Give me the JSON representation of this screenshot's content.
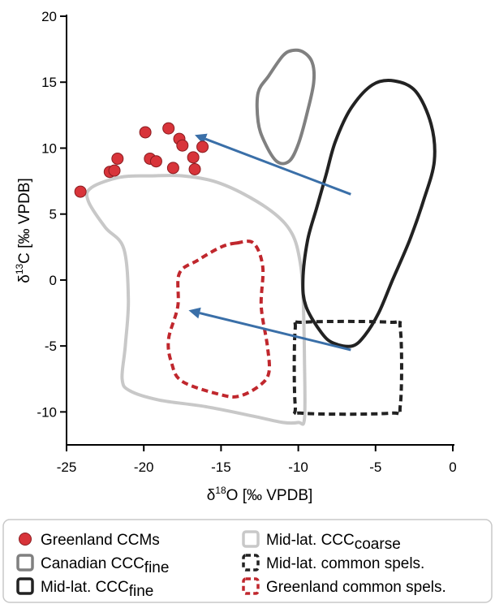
{
  "chart_data": {
    "type": "scatter",
    "title": "",
    "xlabel": {
      "prefix": "δ",
      "sup": "18",
      "suffix": "O [‰ VPDB]"
    },
    "ylabel": {
      "prefix": "δ",
      "sup": "13",
      "suffix": "C [‰ VPDB]"
    },
    "xlim": [
      -25,
      0
    ],
    "ylim": [
      -12.5,
      20
    ],
    "x_ticks": [
      -25,
      -20,
      -15,
      -10,
      -5,
      0
    ],
    "y_ticks": [
      -10,
      -5,
      0,
      5,
      10,
      15,
      20
    ],
    "x_tick_labels": [
      "-25",
      "-20",
      "-15",
      "-10",
      "-5",
      "0"
    ],
    "y_tick_labels": [
      "-10",
      "-5",
      "0",
      "5",
      "10",
      "15",
      "20"
    ],
    "grid": false,
    "legend_position": "bottom",
    "colors": {
      "greenland_ccm": "#d8343a",
      "canadian_fine": "#808080",
      "midlat_fine": "#222222",
      "midlat_coarse": "#c8c8c8",
      "midlat_common": "#222222",
      "greenland_common": "#c0272d",
      "arrow": "#3a6fa8"
    },
    "points": [
      {
        "x": -24.1,
        "y": 6.7
      },
      {
        "x": -22.2,
        "y": 8.2
      },
      {
        "x": -21.9,
        "y": 8.3
      },
      {
        "x": -21.7,
        "y": 9.2
      },
      {
        "x": -19.9,
        "y": 11.2
      },
      {
        "x": -19.6,
        "y": 9.2
      },
      {
        "x": -19.2,
        "y": 9.0
      },
      {
        "x": -18.4,
        "y": 11.5
      },
      {
        "x": -18.1,
        "y": 8.5
      },
      {
        "x": -17.7,
        "y": 10.7
      },
      {
        "x": -17.5,
        "y": 10.2
      },
      {
        "x": -16.8,
        "y": 9.3
      },
      {
        "x": -16.7,
        "y": 8.4
      },
      {
        "x": -16.2,
        "y": 10.1
      }
    ],
    "regions": [
      {
        "key": "canadian_fine",
        "style": "solid",
        "points": [
          [
            -11.4,
            9.0
          ],
          [
            -10.6,
            9.0
          ],
          [
            -10.0,
            10.3
          ],
          [
            -9.4,
            12.8
          ],
          [
            -9.0,
            15.0
          ],
          [
            -9.1,
            16.5
          ],
          [
            -9.7,
            17.3
          ],
          [
            -10.4,
            17.4
          ],
          [
            -11.0,
            17.0
          ],
          [
            -11.9,
            15.5
          ],
          [
            -12.6,
            14.2
          ],
          [
            -12.6,
            12.0
          ],
          [
            -12.2,
            10.5
          ]
        ]
      },
      {
        "key": "midlat_fine",
        "style": "solid",
        "points": [
          [
            -6.5,
            -5.0
          ],
          [
            -7.7,
            -4.8
          ],
          [
            -8.5,
            -4.0
          ],
          [
            -9.5,
            -2.0
          ],
          [
            -9.7,
            0.0
          ],
          [
            -9.4,
            3.0
          ],
          [
            -8.8,
            5.5
          ],
          [
            -8.2,
            8.0
          ],
          [
            -7.6,
            10.5
          ],
          [
            -6.6,
            13.0
          ],
          [
            -5.2,
            14.8
          ],
          [
            -3.8,
            15.1
          ],
          [
            -2.4,
            14.3
          ],
          [
            -1.4,
            11.8
          ],
          [
            -1.2,
            9.0
          ],
          [
            -1.9,
            6.0
          ],
          [
            -2.8,
            3.0
          ],
          [
            -3.9,
            0.0
          ],
          [
            -4.8,
            -2.5
          ],
          [
            -5.7,
            -4.2
          ]
        ]
      },
      {
        "key": "midlat_coarse",
        "style": "solid",
        "points": [
          [
            -23.4,
            7.0
          ],
          [
            -23.6,
            6.0
          ],
          [
            -22.5,
            4.0
          ],
          [
            -21.3,
            2.4
          ],
          [
            -21.0,
            -1.5
          ],
          [
            -21.2,
            -5.0
          ],
          [
            -21.4,
            -7.5
          ],
          [
            -20.9,
            -8.4
          ],
          [
            -19.0,
            -9.1
          ],
          [
            -16.0,
            -9.6
          ],
          [
            -13.0,
            -10.3
          ],
          [
            -11.0,
            -10.8
          ],
          [
            -10.0,
            -10.8
          ],
          [
            -9.6,
            -10.5
          ],
          [
            -9.6,
            -6.0
          ],
          [
            -9.7,
            -1.0
          ],
          [
            -9.9,
            1.5
          ],
          [
            -10.4,
            3.5
          ],
          [
            -11.5,
            5.0
          ],
          [
            -13.5,
            6.5
          ],
          [
            -15.5,
            7.5
          ],
          [
            -17.5,
            7.9
          ],
          [
            -19.5,
            7.9
          ],
          [
            -21.5,
            7.8
          ]
        ]
      },
      {
        "key": "midlat_common",
        "style": "dashed",
        "points": [
          [
            -10.2,
            -3.7
          ],
          [
            -9.7,
            -3.2
          ],
          [
            -4.1,
            -3.2
          ],
          [
            -3.4,
            -3.7
          ],
          [
            -3.4,
            -9.5
          ],
          [
            -4.1,
            -10.1
          ],
          [
            -9.7,
            -10.1
          ],
          [
            -10.2,
            -9.5
          ]
        ]
      },
      {
        "key": "greenland_common",
        "style": "dashed",
        "points": [
          [
            -14.0,
            2.8
          ],
          [
            -12.9,
            2.8
          ],
          [
            -12.3,
            1.0
          ],
          [
            -12.4,
            -2.0
          ],
          [
            -12.0,
            -5.0
          ],
          [
            -11.9,
            -7.0
          ],
          [
            -12.5,
            -8.0
          ],
          [
            -13.8,
            -8.8
          ],
          [
            -15.0,
            -8.7
          ],
          [
            -17.5,
            -7.7
          ],
          [
            -18.2,
            -6.3
          ],
          [
            -18.4,
            -4.5
          ],
          [
            -17.8,
            -2.0
          ],
          [
            -17.7,
            0.5
          ],
          [
            -16.5,
            1.5
          ],
          [
            -15.0,
            2.5
          ]
        ]
      }
    ],
    "arrows": [
      {
        "from": [
          -6.6,
          6.5
        ],
        "to": [
          -16.7,
          11.0
        ]
      },
      {
        "from": [
          -6.6,
          -5.3
        ],
        "to": [
          -17.1,
          -2.3
        ]
      }
    ],
    "legend": [
      {
        "key": "greenland_ccm",
        "marker": "point",
        "parts": [
          {
            "t": "Greenland CCMs",
            "sub": false
          }
        ]
      },
      {
        "key": "midlat_coarse",
        "marker": "solid",
        "parts": [
          {
            "t": "Mid-lat. CCC",
            "sub": false
          },
          {
            "t": "coarse",
            "sub": true
          }
        ]
      },
      {
        "key": "canadian_fine",
        "marker": "solid",
        "parts": [
          {
            "t": "Canadian CCC",
            "sub": false
          },
          {
            "t": "fine",
            "sub": true
          }
        ]
      },
      {
        "key": "midlat_common",
        "marker": "dashed",
        "parts": [
          {
            "t": "Mid-lat. common spels.",
            "sub": false
          }
        ]
      },
      {
        "key": "midlat_fine",
        "marker": "solid",
        "parts": [
          {
            "t": "Mid-lat. CCC",
            "sub": false
          },
          {
            "t": "fine",
            "sub": true
          }
        ]
      },
      {
        "key": "greenland_common",
        "marker": "dashed",
        "parts": [
          {
            "t": "Greenland common spels.",
            "sub": false
          }
        ]
      }
    ]
  }
}
